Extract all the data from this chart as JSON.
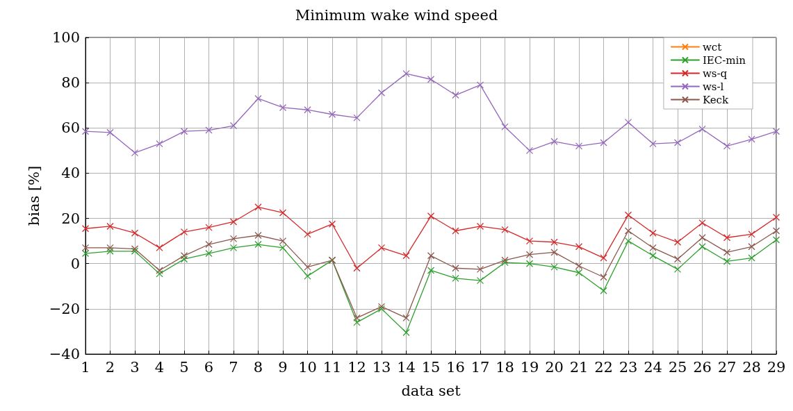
{
  "chart_data": {
    "type": "line",
    "title": "Minimum wake wind speed",
    "xlabel": "data set",
    "ylabel": "bias [%]",
    "x": [
      1,
      2,
      3,
      4,
      5,
      6,
      7,
      8,
      9,
      10,
      11,
      12,
      13,
      14,
      15,
      16,
      17,
      18,
      19,
      20,
      21,
      22,
      23,
      24,
      25,
      26,
      27,
      28,
      29
    ],
    "xlim": [
      1,
      29
    ],
    "xticks": [
      1,
      2,
      3,
      4,
      5,
      6,
      7,
      8,
      9,
      10,
      11,
      12,
      13,
      14,
      15,
      16,
      17,
      18,
      19,
      20,
      21,
      22,
      23,
      24,
      25,
      26,
      27,
      28,
      29
    ],
    "ylim": [
      -40,
      100
    ],
    "yticks": [
      -40,
      -20,
      0,
      20,
      40,
      60,
      80,
      100
    ],
    "grid": true,
    "legend": "top right",
    "marker": "cross",
    "line_style": "solid",
    "series": [
      {
        "name": "wct",
        "color": "#ff7f0e",
        "values": [
          null,
          null,
          null,
          null,
          null,
          null,
          null,
          null,
          null,
          null,
          null,
          null,
          null,
          null,
          null,
          null,
          null,
          null,
          null,
          null,
          null,
          null,
          null,
          null,
          null,
          null,
          null,
          null,
          null
        ]
      },
      {
        "name": "IEC-min",
        "color": "#2ca02c",
        "values": [
          4.5,
          5.5,
          5.5,
          -4.5,
          2,
          4.5,
          7,
          8.5,
          7,
          -5.5,
          1.5,
          -26,
          -20,
          -30.5,
          -3,
          -6.5,
          -7.5,
          0.5,
          0,
          -1.5,
          -4,
          -12,
          10,
          3.5,
          -2.5,
          7.5,
          1,
          2.5,
          10.5
        ]
      },
      {
        "name": "ws-q",
        "color": "#d62728",
        "values": [
          15.5,
          16.5,
          13.5,
          7,
          14,
          16,
          18.5,
          25,
          22.5,
          13,
          17.5,
          -2,
          7,
          3.5,
          21,
          14.5,
          16.5,
          15,
          10,
          9.5,
          7.5,
          2.5,
          21.5,
          13.5,
          9.5,
          18,
          11.5,
          13,
          20.5
        ]
      },
      {
        "name": "ws-l",
        "color": "#9467bd",
        "values": [
          58.5,
          58,
          49,
          53,
          58.5,
          59,
          61,
          73,
          69,
          68,
          66,
          64.5,
          75.5,
          84,
          81.5,
          74.5,
          79,
          60.5,
          50,
          54,
          52,
          53.5,
          62.5,
          53,
          53.5,
          59.5,
          52,
          55,
          58.5
        ]
      },
      {
        "name": "Keck",
        "color": "#8c564b",
        "values": [
          7,
          7,
          6.5,
          -3,
          3.5,
          8.5,
          11,
          12.5,
          10,
          -1.5,
          1.5,
          -24,
          -19,
          -24,
          3.5,
          -2,
          -2.5,
          1.5,
          4,
          5,
          -1,
          -6,
          14.5,
          7,
          2,
          11.5,
          5,
          7.5,
          14.5
        ]
      }
    ]
  }
}
